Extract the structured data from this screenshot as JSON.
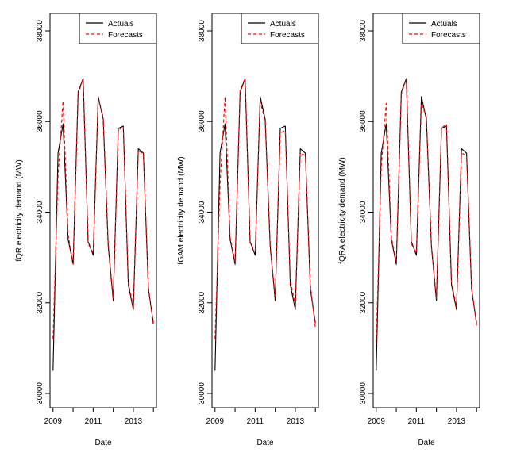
{
  "chart_data": [
    {
      "type": "line",
      "title": "",
      "xlabel": "Date",
      "ylabel": "fQR electricity demand (MW)",
      "x": [
        2009.0,
        2009.25,
        2009.5,
        2009.75,
        2010.0,
        2010.25,
        2010.5,
        2010.75,
        2011.0,
        2011.25,
        2011.5,
        2011.75,
        2012.0,
        2012.25,
        2012.5,
        2012.75,
        2013.0,
        2013.25,
        2013.5,
        2013.75,
        2014.0
      ],
      "xlim": [
        2008.85,
        2014.15
      ],
      "ylim": [
        30000,
        38000
      ],
      "xticks": [
        "2009",
        "2011",
        "2013"
      ],
      "yticks": [
        "30000",
        "32000",
        "34000",
        "36000",
        "38000"
      ],
      "legend": {
        "position": "top-right",
        "entries": [
          "Actuals",
          "Forecasts"
        ]
      },
      "series": [
        {
          "name": "Actuals",
          "color": "#000000",
          "dash": "solid",
          "values": [
            30500,
            35300,
            35950,
            33400,
            32850,
            36650,
            36950,
            33350,
            33050,
            36550,
            36050,
            33250,
            32050,
            35850,
            35900,
            32400,
            31850,
            35400,
            35300,
            32300,
            31550
          ]
        },
        {
          "name": "Forecasts",
          "color": "#ff0000",
          "dash": "dashed",
          "values": [
            31200,
            34800,
            36450,
            33500,
            32850,
            36600,
            36950,
            33300,
            33100,
            36500,
            36100,
            33300,
            32100,
            35800,
            35900,
            32450,
            31900,
            35350,
            35300,
            32350,
            31500
          ]
        }
      ]
    },
    {
      "type": "line",
      "title": "",
      "xlabel": "Date",
      "ylabel": "fGAM electricity demand (MW)",
      "x": [
        2009.0,
        2009.25,
        2009.5,
        2009.75,
        2010.0,
        2010.25,
        2010.5,
        2010.75,
        2011.0,
        2011.25,
        2011.5,
        2011.75,
        2012.0,
        2012.25,
        2012.5,
        2012.75,
        2013.0,
        2013.25,
        2013.5,
        2013.75,
        2014.0
      ],
      "xlim": [
        2008.85,
        2014.15
      ],
      "ylim": [
        30000,
        38000
      ],
      "xticks": [
        "2009",
        "2011",
        "2013"
      ],
      "yticks": [
        "30000",
        "32000",
        "34000",
        "36000",
        "38000"
      ],
      "legend": {
        "position": "top-right",
        "entries": [
          "Actuals",
          "Forecasts"
        ]
      },
      "series": [
        {
          "name": "Actuals",
          "color": "#000000",
          "dash": "solid",
          "values": [
            30500,
            35300,
            35950,
            33400,
            32850,
            36650,
            36950,
            33350,
            33050,
            36550,
            36050,
            33250,
            32050,
            35850,
            35900,
            32400,
            31850,
            35400,
            35300,
            32300,
            31550
          ]
        },
        {
          "name": "Forecasts",
          "color": "#ff0000",
          "dash": "dashed",
          "values": [
            31200,
            34600,
            36550,
            33450,
            32900,
            36700,
            36950,
            33300,
            33150,
            36450,
            36000,
            33200,
            32150,
            35750,
            35800,
            32500,
            31950,
            35300,
            35250,
            32400,
            31450
          ]
        }
      ]
    },
    {
      "type": "line",
      "title": "",
      "xlabel": "Date",
      "ylabel": "fQRA electricity demand (MW)",
      "x": [
        2009.0,
        2009.25,
        2009.5,
        2009.75,
        2010.0,
        2010.25,
        2010.5,
        2010.75,
        2011.0,
        2011.25,
        2011.5,
        2011.75,
        2012.0,
        2012.25,
        2012.5,
        2012.75,
        2013.0,
        2013.25,
        2013.5,
        2013.75,
        2014.0
      ],
      "xlim": [
        2008.85,
        2014.15
      ],
      "ylim": [
        30000,
        38000
      ],
      "xticks": [
        "2009",
        "2011",
        "2013"
      ],
      "yticks": [
        "30000",
        "32000",
        "34000",
        "36000",
        "38000"
      ],
      "legend": {
        "position": "top-right",
        "entries": [
          "Actuals",
          "Forecasts"
        ]
      },
      "series": [
        {
          "name": "Actuals",
          "color": "#000000",
          "dash": "solid",
          "values": [
            30500,
            35300,
            35950,
            33400,
            32850,
            36650,
            36950,
            33350,
            33050,
            36550,
            36050,
            33250,
            32050,
            35850,
            35900,
            32400,
            31850,
            35400,
            35300,
            32300,
            31550
          ]
        },
        {
          "name": "Forecasts",
          "color": "#ff0000",
          "dash": "dashed",
          "values": [
            31100,
            35000,
            36400,
            33450,
            32900,
            36600,
            36950,
            33300,
            33100,
            36400,
            36100,
            33250,
            32100,
            35850,
            35950,
            32450,
            31900,
            35300,
            35250,
            32350,
            31500
          ]
        }
      ]
    }
  ]
}
